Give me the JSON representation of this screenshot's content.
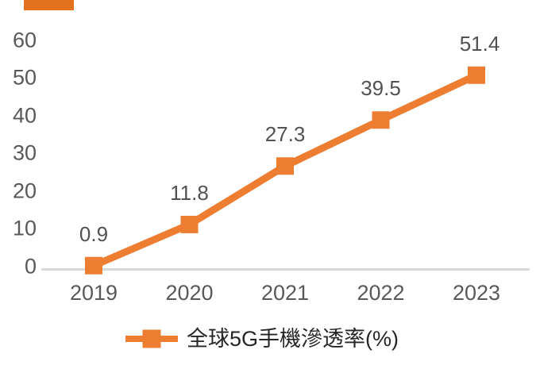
{
  "page": {
    "background": "#FFFFFF"
  },
  "corner_accent": {
    "color": "#E2731C"
  },
  "chart_data": {
    "type": "line",
    "title": "",
    "xlabel": "",
    "ylabel": "",
    "categories": [
      "2019",
      "2020",
      "2021",
      "2022",
      "2023"
    ],
    "series": [
      {
        "name": "全球5G手機滲透率(%)",
        "color": "#ED7D31",
        "marker": "square",
        "values": [
          0.9,
          11.8,
          27.3,
          39.5,
          51.4
        ],
        "data_labels": [
          "0.9",
          "11.8",
          "27.3",
          "39.5",
          "51.4"
        ]
      }
    ],
    "y_ticks": [
      "0",
      "10",
      "20",
      "30",
      "40",
      "50",
      "60"
    ],
    "ylim": [
      0,
      60
    ],
    "grid": false,
    "legend_position": "bottom",
    "axis_line_color": "#D9D9D9",
    "tick_label_color": "#595959",
    "data_label_color": "#525252"
  },
  "legend": {
    "label": "全球5G手機滲透率(%)",
    "swatch_color": "#ED7D31",
    "text_color": "#262626"
  }
}
